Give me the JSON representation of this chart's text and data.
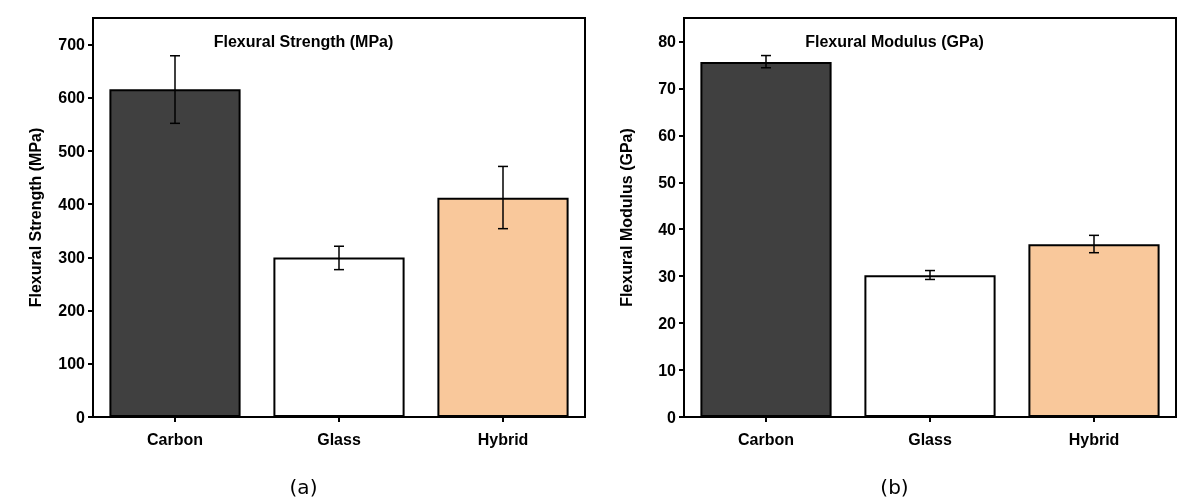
{
  "chart_data": [
    {
      "type": "bar",
      "title": "Flexural Strength (MPa)",
      "ylabel": "Flexural Strength (MPa)",
      "categories": [
        "Carbon",
        "Glass",
        "Hybrid"
      ],
      "values": [
        616,
        300,
        412
      ],
      "colors": [
        "#404040",
        "#ffffff",
        "#f9c89b"
      ],
      "errors": [
        [
          552,
          679
        ],
        [
          277,
          321
        ],
        [
          354,
          471
        ]
      ],
      "ylim": [
        0,
        750
      ],
      "yticks": [
        0,
        100,
        200,
        300,
        400,
        500,
        600,
        700
      ],
      "grid": false,
      "annotations": [
        "(a)"
      ]
    },
    {
      "type": "bar",
      "title": "Flexural Modulus (GPa)",
      "ylabel": "Flexural Modulus (GPa)",
      "categories": [
        "Carbon",
        "Glass",
        "Hybrid"
      ],
      "values": [
        75.6,
        30.2,
        36.8
      ],
      "colors": [
        "#404040",
        "#ffffff",
        "#f9c89b"
      ],
      "errors": [
        [
          74.4,
          77.0
        ],
        [
          29.3,
          31.2
        ],
        [
          35.0,
          38.7
        ]
      ],
      "ylim": [
        0,
        85
      ],
      "yticks": [
        0,
        10,
        20,
        30,
        40,
        50,
        60,
        70,
        80
      ],
      "grid": false,
      "annotations": [
        "(b)"
      ]
    }
  ]
}
